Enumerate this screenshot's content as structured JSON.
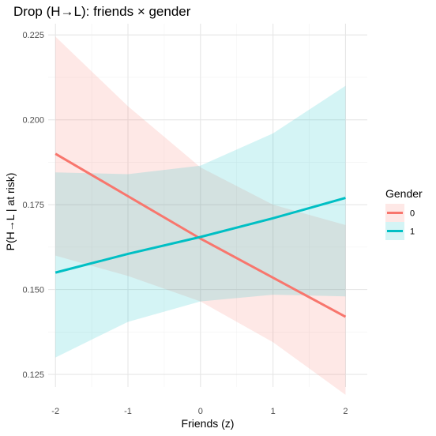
{
  "chart_data": {
    "type": "line",
    "title": "Drop (H→L): friends × gender",
    "xlabel": "Friends (z)",
    "ylabel": "P(H→L | at risk)",
    "xlim": [
      -2.1,
      2.3
    ],
    "ylim": [
      0.1213,
      0.2283
    ],
    "x_ticks": [
      -2,
      -1,
      0,
      1,
      2
    ],
    "x_tick_labels": [
      "-2",
      "-1",
      "0",
      "1",
      "2"
    ],
    "y_ticks": [
      0.125,
      0.15,
      0.175,
      0.2,
      0.225
    ],
    "y_tick_labels": [
      "0.125",
      "0.150",
      "0.175",
      "0.200",
      "0.225"
    ],
    "grid": true,
    "legend": {
      "title": "Gender",
      "position": "right"
    },
    "series": [
      {
        "name": "0",
        "color": "#F8766D",
        "x": [
          -2,
          -1,
          0,
          1,
          2
        ],
        "y": [
          0.19,
          0.1775,
          0.165,
          0.1535,
          0.142
        ],
        "lower": [
          0.16,
          0.154,
          0.1465,
          0.1345,
          0.119
        ],
        "upper": [
          0.2245,
          0.204,
          0.186,
          0.175,
          0.169
        ]
      },
      {
        "name": "1",
        "color": "#00BFC4",
        "x": [
          -2,
          -1,
          0,
          1,
          2
        ],
        "y": [
          0.155,
          0.1605,
          0.1655,
          0.171,
          0.177
        ],
        "lower": [
          0.13,
          0.1405,
          0.1465,
          0.1485,
          0.148
        ],
        "upper": [
          0.1845,
          0.184,
          0.1865,
          0.196,
          0.21
        ]
      }
    ]
  }
}
